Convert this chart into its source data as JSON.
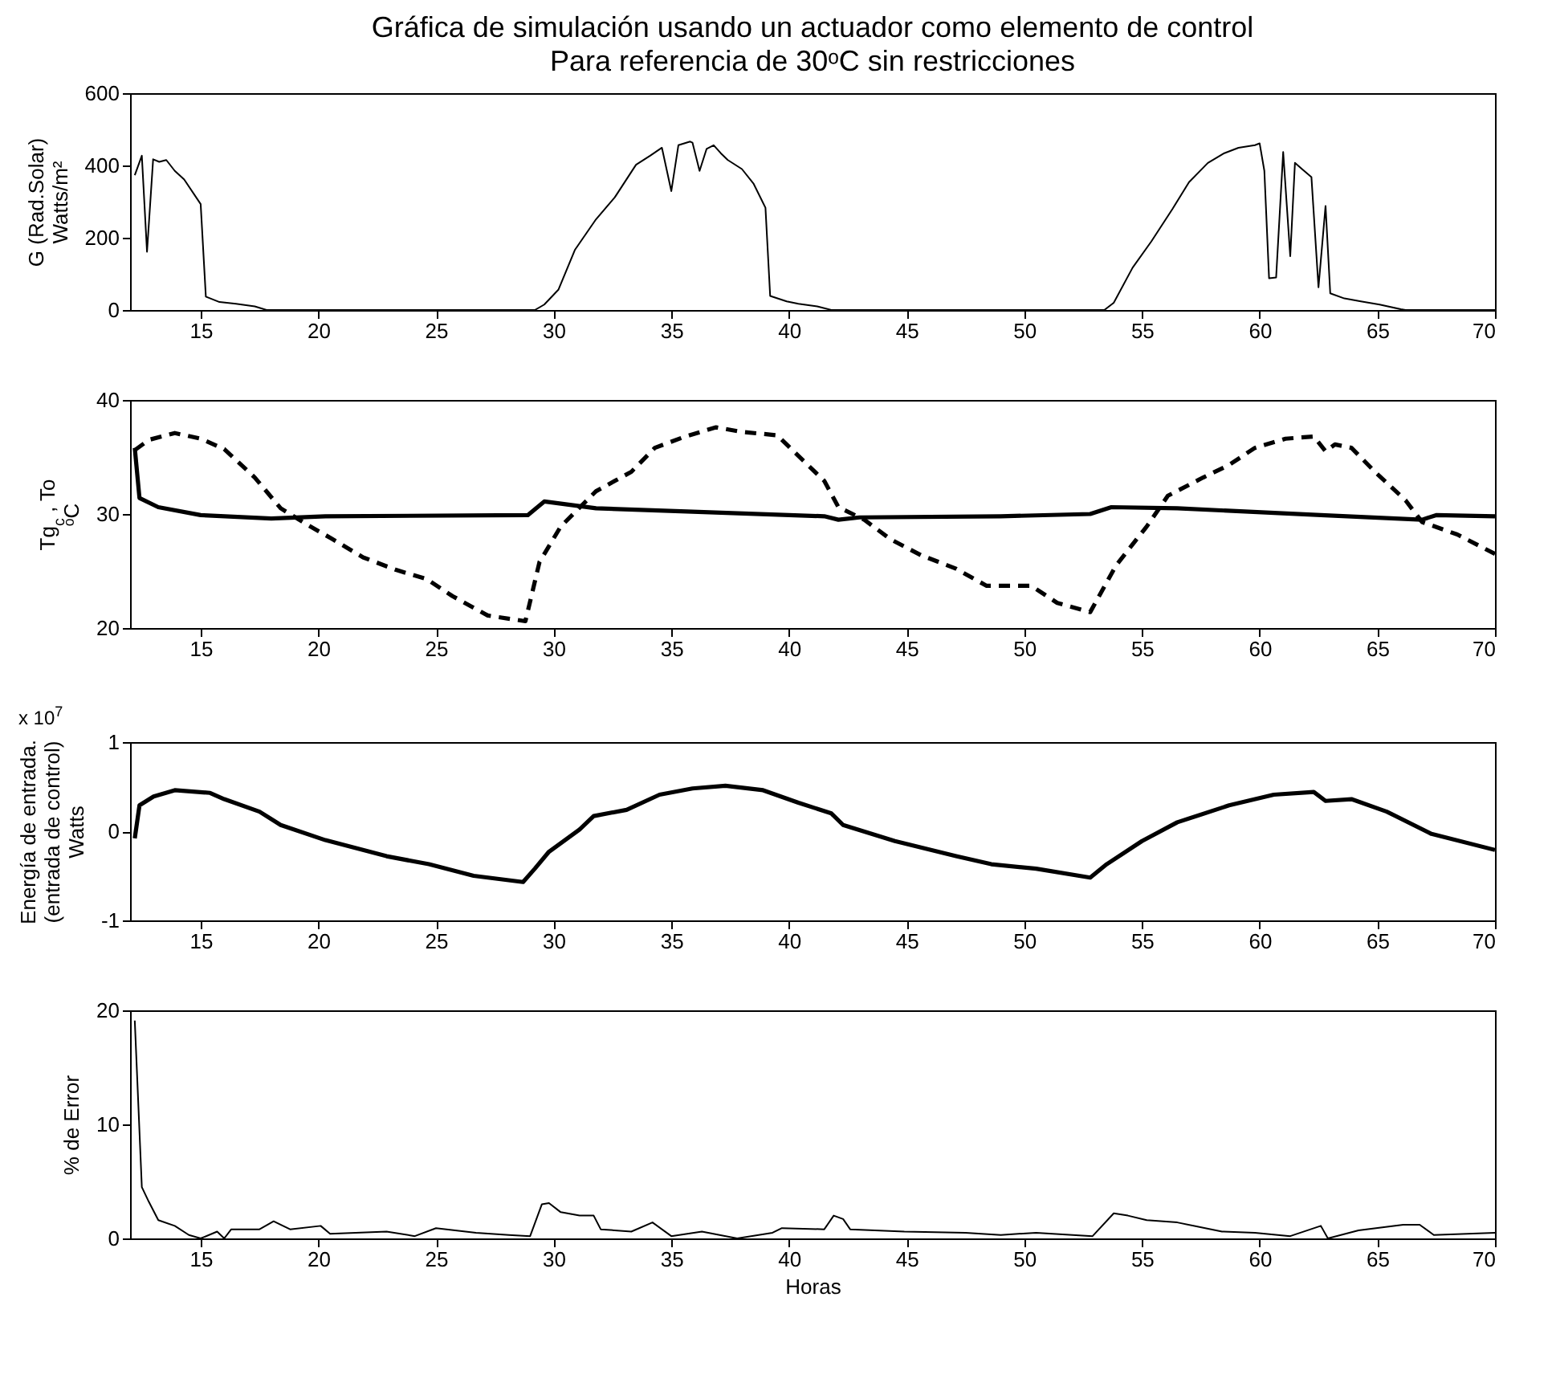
{
  "chart_data": [
    {
      "type": "line",
      "title": "Gráfica de simulación usando un actuador como elemento de control",
      "subtitle": "Para referencia de 30ᵒC      sin restricciones",
      "ylabel": "G (Rad.Solar)\nWatts/m²",
      "color": "#000000",
      "x": [
        12.2,
        12.5,
        12.72,
        12.98,
        13.24,
        13.54,
        13.9,
        14.3,
        15.0,
        15.22,
        15.8,
        16.5,
        17.3,
        17.8,
        29.2,
        29.6,
        30.2,
        30.9,
        31.8,
        32.6,
        33.5,
        34.1,
        34.6,
        35.0,
        35.3,
        35.8,
        35.9,
        36.2,
        36.5,
        36.8,
        37.1,
        37.4,
        38.0,
        38.5,
        39.0,
        39.2,
        39.9,
        40.4,
        41.2,
        41.8,
        53.4,
        53.8,
        54.6,
        55.4,
        56.3,
        57.0,
        57.8,
        58.5,
        59.1,
        59.8,
        60.0,
        60.2,
        60.4,
        60.7,
        61.0,
        61.3,
        61.5,
        61.8,
        62.2,
        62.5,
        62.8,
        63.0,
        63.6,
        64.3,
        65.1,
        66.0,
        66.2,
        70
      ],
      "values": [
        373,
        427,
        161,
        417,
        410,
        415,
        385,
        361,
        293,
        37,
        22,
        17,
        10,
        0,
        0,
        15,
        56,
        166,
        251,
        312,
        402,
        427,
        449,
        329,
        456,
        466,
        463,
        385,
        446,
        456,
        434,
        415,
        390,
        349,
        283,
        39,
        24,
        17,
        10,
        0,
        0,
        20,
        117,
        190,
        280,
        354,
        407,
        434,
        449,
        456,
        461,
        385,
        88,
        90,
        437,
        149,
        407,
        390,
        368,
        63,
        288,
        46,
        32,
        24,
        15,
        2,
        0,
        0
      ],
      "xlim": [
        12,
        70
      ],
      "xticks": [
        15,
        20,
        25,
        30,
        35,
        40,
        45,
        50,
        55,
        60,
        65,
        70
      ],
      "ylim": [
        0,
        600
      ],
      "yticks": [
        0,
        200,
        400,
        600
      ],
      "grid": false
    },
    {
      "type": "line",
      "ylabel": "Tg$_{c}$ , To\nᵒC",
      "grid": false,
      "xlim": [
        12,
        70
      ],
      "xticks": [
        15,
        20,
        25,
        30,
        35,
        40,
        45,
        50,
        55,
        60,
        65,
        70
      ],
      "ylim": [
        20,
        40
      ],
      "yticks": [
        20,
        30,
        40
      ],
      "series": [
        {
          "color": "#000000",
          "line_style": "solid",
          "x": [
            12.2,
            12.4,
            13.2,
            15.0,
            18.0,
            20.3,
            28.9,
            29.6,
            31.8,
            35.9,
            41.5,
            42.1,
            43.0,
            49.0,
            52.8,
            53.7,
            56.5,
            62.6,
            66.9,
            67.5,
            70
          ],
          "values": [
            35.8,
            31.4,
            30.6,
            29.9,
            29.6,
            29.8,
            29.9,
            31.1,
            30.5,
            30.2,
            29.8,
            29.5,
            29.7,
            29.8,
            30.0,
            30.6,
            30.5,
            29.9,
            29.5,
            29.9,
            29.8
          ]
        },
        {
          "color": "#000000",
          "line_style": "dashed",
          "x": [
            12.2,
            12.8,
            13.9,
            15.0,
            16.0,
            17.3,
            18.4,
            19.5,
            20.6,
            21.9,
            23.3,
            24.6,
            25.7,
            27.2,
            28.8,
            29.4,
            30.3,
            31.8,
            33.3,
            34.3,
            35.6,
            36.9,
            38.0,
            39.5,
            40.4,
            41.5,
            42.1,
            43.2,
            44.3,
            45.6,
            47.1,
            48.4,
            50.3,
            51.4,
            52.8,
            53.9,
            55.2,
            56.1,
            57.6,
            58.7,
            59.8,
            61.1,
            62.3,
            62.8,
            63.2,
            63.9,
            64.9,
            66.2,
            66.9,
            68.4,
            70
          ],
          "values": [
            35.6,
            36.5,
            37.1,
            36.6,
            35.7,
            33.2,
            30.5,
            29.1,
            27.8,
            26.2,
            25.1,
            24.3,
            22.8,
            21.1,
            20.6,
            25.8,
            28.9,
            32.0,
            33.7,
            35.8,
            36.8,
            37.6,
            37.2,
            36.9,
            35.1,
            32.9,
            30.6,
            29.5,
            27.8,
            26.4,
            25.2,
            23.7,
            23.7,
            22.2,
            21.4,
            25.5,
            28.9,
            31.6,
            33.2,
            34.3,
            35.8,
            36.6,
            36.8,
            35.5,
            36.1,
            35.8,
            33.7,
            31.2,
            29.3,
            28.2,
            26.5
          ]
        }
      ]
    },
    {
      "type": "line",
      "ylabel": "Energía de entrada.\n(entrada de control)\nWatts",
      "annotations": [
        "x 10$^{7}$"
      ],
      "color": "#000000",
      "grid": false,
      "x": [
        12.2,
        12.4,
        13.0,
        13.9,
        15.4,
        16.0,
        17.5,
        18.4,
        20.3,
        22.9,
        24.7,
        26.6,
        28.7,
        29.2,
        29.8,
        31.1,
        31.7,
        33.1,
        34.5,
        35.9,
        37.3,
        38.9,
        40.4,
        41.8,
        42.3,
        44.5,
        47.1,
        48.6,
        50.5,
        52.8,
        53.5,
        55.0,
        56.5,
        58.7,
        60.6,
        62.3,
        62.8,
        63.9,
        65.4,
        67.3,
        70
      ],
      "values": [
        -0.08,
        0.29,
        0.39,
        0.46,
        0.43,
        0.36,
        0.22,
        0.07,
        -0.1,
        -0.28,
        -0.37,
        -0.5,
        -0.57,
        -0.42,
        -0.23,
        0.02,
        0.17,
        0.24,
        0.41,
        0.48,
        0.51,
        0.46,
        0.32,
        0.2,
        0.07,
        -0.11,
        -0.28,
        -0.37,
        -0.42,
        -0.52,
        -0.37,
        -0.11,
        0.1,
        0.29,
        0.41,
        0.44,
        0.34,
        0.36,
        0.22,
        -0.03,
        -0.21
      ],
      "xlim": [
        12,
        70
      ],
      "xticks": [
        15,
        20,
        25,
        30,
        35,
        40,
        45,
        50,
        55,
        60,
        65,
        70
      ],
      "ylim": [
        -1,
        1
      ],
      "yticks": [
        -1,
        0,
        1
      ]
    },
    {
      "type": "line",
      "ylabel": "% de Error",
      "xlabel": "Horas",
      "color": "#000000",
      "grid": false,
      "x": [
        12.2,
        12.5,
        12.8,
        13.2,
        13.9,
        14.5,
        15.0,
        15.7,
        16.0,
        16.3,
        17.5,
        18.1,
        18.8,
        20.1,
        20.5,
        22.9,
        24.1,
        25.0,
        26.7,
        28.1,
        29.0,
        29.5,
        29.8,
        30.3,
        31.1,
        31.7,
        32.0,
        33.3,
        34.2,
        35.0,
        36.3,
        37.8,
        39.3,
        39.7,
        41.5,
        41.9,
        42.3,
        42.6,
        44.9,
        47.5,
        49.0,
        50.5,
        52.9,
        53.8,
        54.4,
        55.2,
        56.5,
        58.4,
        59.8,
        61.3,
        62.6,
        62.9,
        64.2,
        66.1,
        66.8,
        67.4,
        70
      ],
      "values": [
        19.1,
        4.5,
        3.2,
        1.6,
        1.1,
        0.3,
        0,
        0.6,
        0,
        0.8,
        0.8,
        1.5,
        0.8,
        1.1,
        0.4,
        0.6,
        0.2,
        0.9,
        0.5,
        0.3,
        0.2,
        3.0,
        3.1,
        2.3,
        2.0,
        2.0,
        0.8,
        0.6,
        1.4,
        0.2,
        0.6,
        0,
        0.5,
        0.9,
        0.8,
        2.0,
        1.7,
        0.8,
        0.6,
        0.5,
        0.3,
        0.5,
        0.2,
        2.2,
        2.0,
        1.6,
        1.4,
        0.6,
        0.5,
        0.2,
        1.1,
        0,
        0.7,
        1.2,
        1.2,
        0.3,
        0.5
      ],
      "xlim": [
        12,
        70
      ],
      "xticks": [
        15,
        20,
        25,
        30,
        35,
        40,
        45,
        50,
        55,
        60,
        65,
        70
      ],
      "ylim": [
        0,
        20
      ],
      "yticks": [
        0,
        10,
        20
      ]
    }
  ]
}
